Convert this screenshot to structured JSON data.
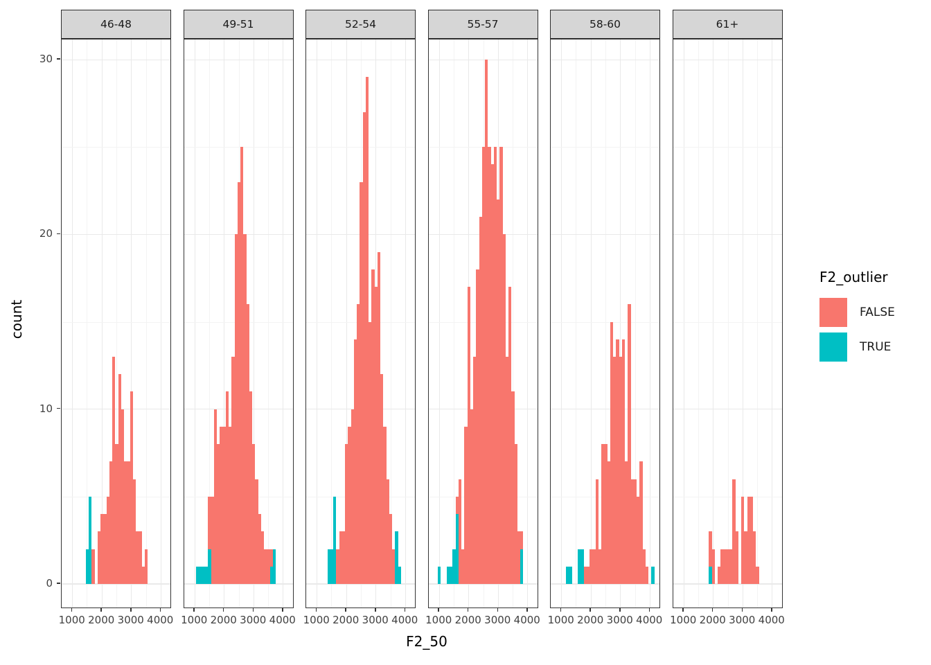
{
  "chart": {
    "y_axis": {
      "title": "count",
      "ticks": [
        0,
        10,
        20,
        30
      ]
    },
    "x_axis": {
      "title": "F2_50",
      "ticks": [
        1000,
        2000,
        3000,
        4000
      ]
    },
    "legend": {
      "title": "F2_outlier",
      "position": "right",
      "items": [
        {
          "label": "FALSE",
          "color": "#F8766D"
        },
        {
          "label": "TRUE",
          "color": "#00BFC4"
        }
      ]
    }
  },
  "chart_data": {
    "type": "bar",
    "subtype": "faceted-stacked-histogram",
    "title": "",
    "xlabel": "F2_50",
    "ylabel": "count",
    "binwidth": 100,
    "xlim": [
      630,
      4370
    ],
    "ylim": [
      0,
      31
    ],
    "grid": "on",
    "facet_labels": [
      "46-48",
      "49-51",
      "52-54",
      "55-57",
      "58-60",
      "61+"
    ],
    "series_colors": {
      "FALSE": "#F8766D",
      "TRUE": "#00BFC4"
    },
    "bars_format": "[bin_center_hz, count_FALSE, count_TRUE]",
    "facets": [
      {
        "label": "46-48",
        "bars": [
          [
            1500,
            0,
            2
          ],
          [
            1600,
            0,
            5
          ],
          [
            1700,
            2,
            0
          ],
          [
            1900,
            3,
            0
          ],
          [
            2000,
            4,
            0
          ],
          [
            2100,
            4,
            0
          ],
          [
            2200,
            5,
            0
          ],
          [
            2300,
            7,
            0
          ],
          [
            2400,
            13,
            0
          ],
          [
            2500,
            8,
            0
          ],
          [
            2600,
            12,
            0
          ],
          [
            2700,
            10,
            0
          ],
          [
            2800,
            7,
            0
          ],
          [
            2900,
            7,
            0
          ],
          [
            3000,
            11,
            0
          ],
          [
            3100,
            6,
            0
          ],
          [
            3200,
            3,
            0
          ],
          [
            3300,
            3,
            0
          ],
          [
            3400,
            1,
            0
          ],
          [
            3500,
            2,
            0
          ]
        ]
      },
      {
        "label": "49-51",
        "bars": [
          [
            1100,
            0,
            1
          ],
          [
            1200,
            0,
            1
          ],
          [
            1300,
            0,
            1
          ],
          [
            1400,
            0,
            1
          ],
          [
            1500,
            3,
            2
          ],
          [
            1600,
            5,
            0
          ],
          [
            1700,
            10,
            0
          ],
          [
            1800,
            8,
            0
          ],
          [
            1900,
            9,
            0
          ],
          [
            2000,
            9,
            0
          ],
          [
            2100,
            11,
            0
          ],
          [
            2200,
            9,
            0
          ],
          [
            2300,
            13,
            0
          ],
          [
            2400,
            20,
            0
          ],
          [
            2500,
            23,
            0
          ],
          [
            2600,
            25,
            0
          ],
          [
            2700,
            20,
            0
          ],
          [
            2800,
            16,
            0
          ],
          [
            2900,
            11,
            0
          ],
          [
            3000,
            8,
            0
          ],
          [
            3100,
            6,
            0
          ],
          [
            3200,
            4,
            0
          ],
          [
            3300,
            3,
            0
          ],
          [
            3400,
            2,
            0
          ],
          [
            3500,
            2,
            0
          ],
          [
            3600,
            1,
            1
          ],
          [
            3700,
            0,
            2
          ]
        ]
      },
      {
        "label": "52-54",
        "bars": [
          [
            1400,
            0,
            2
          ],
          [
            1500,
            0,
            2
          ],
          [
            1600,
            0,
            5
          ],
          [
            1700,
            2,
            0
          ],
          [
            1800,
            3,
            0
          ],
          [
            1900,
            3,
            0
          ],
          [
            2000,
            8,
            0
          ],
          [
            2100,
            9,
            0
          ],
          [
            2200,
            10,
            0
          ],
          [
            2300,
            14,
            0
          ],
          [
            2400,
            16,
            0
          ],
          [
            2500,
            23,
            0
          ],
          [
            2600,
            27,
            0
          ],
          [
            2700,
            29,
            0
          ],
          [
            2800,
            15,
            0
          ],
          [
            2900,
            18,
            0
          ],
          [
            3000,
            17,
            0
          ],
          [
            3100,
            19,
            0
          ],
          [
            3200,
            12,
            0
          ],
          [
            3300,
            9,
            0
          ],
          [
            3400,
            6,
            0
          ],
          [
            3500,
            4,
            0
          ],
          [
            3600,
            2,
            0
          ],
          [
            3700,
            0,
            3
          ],
          [
            3800,
            0,
            1
          ]
        ]
      },
      {
        "label": "55-57",
        "bars": [
          [
            1000,
            0,
            1
          ],
          [
            1300,
            0,
            1
          ],
          [
            1400,
            0,
            1
          ],
          [
            1500,
            0,
            2
          ],
          [
            1600,
            1,
            4
          ],
          [
            1700,
            6,
            0
          ],
          [
            1800,
            2,
            0
          ],
          [
            1900,
            9,
            0
          ],
          [
            2000,
            17,
            0
          ],
          [
            2100,
            10,
            0
          ],
          [
            2200,
            13,
            0
          ],
          [
            2300,
            18,
            0
          ],
          [
            2400,
            21,
            0
          ],
          [
            2500,
            25,
            0
          ],
          [
            2600,
            30,
            0
          ],
          [
            2700,
            25,
            0
          ],
          [
            2800,
            24,
            0
          ],
          [
            2900,
            25,
            0
          ],
          [
            3000,
            22,
            0
          ],
          [
            3100,
            25,
            0
          ],
          [
            3200,
            20,
            0
          ],
          [
            3300,
            13,
            0
          ],
          [
            3400,
            17,
            0
          ],
          [
            3500,
            11,
            0
          ],
          [
            3600,
            8,
            0
          ],
          [
            3700,
            3,
            0
          ],
          [
            3800,
            1,
            2
          ]
        ]
      },
      {
        "label": "58-60",
        "bars": [
          [
            1200,
            0,
            1
          ],
          [
            1300,
            0,
            1
          ],
          [
            1600,
            0,
            2
          ],
          [
            1700,
            0,
            2
          ],
          [
            1800,
            1,
            0
          ],
          [
            1900,
            1,
            0
          ],
          [
            2000,
            2,
            0
          ],
          [
            2100,
            2,
            0
          ],
          [
            2200,
            6,
            0
          ],
          [
            2300,
            2,
            0
          ],
          [
            2400,
            8,
            0
          ],
          [
            2500,
            8,
            0
          ],
          [
            2600,
            7,
            0
          ],
          [
            2700,
            15,
            0
          ],
          [
            2800,
            13,
            0
          ],
          [
            2900,
            14,
            0
          ],
          [
            3000,
            13,
            0
          ],
          [
            3100,
            14,
            0
          ],
          [
            3200,
            7,
            0
          ],
          [
            3300,
            16,
            0
          ],
          [
            3400,
            6,
            0
          ],
          [
            3500,
            6,
            0
          ],
          [
            3600,
            5,
            0
          ],
          [
            3700,
            7,
            0
          ],
          [
            3800,
            2,
            0
          ],
          [
            3900,
            1,
            0
          ],
          [
            4100,
            0,
            1
          ]
        ]
      },
      {
        "label": "61+",
        "bars": [
          [
            1900,
            2,
            1
          ],
          [
            2000,
            2,
            0
          ],
          [
            2200,
            1,
            0
          ],
          [
            2300,
            2,
            0
          ],
          [
            2400,
            2,
            0
          ],
          [
            2500,
            2,
            0
          ],
          [
            2600,
            2,
            0
          ],
          [
            2700,
            6,
            0
          ],
          [
            2800,
            3,
            0
          ],
          [
            3000,
            5,
            0
          ],
          [
            3100,
            3,
            0
          ],
          [
            3200,
            5,
            0
          ],
          [
            3300,
            5,
            0
          ],
          [
            3400,
            3,
            0
          ],
          [
            3500,
            1,
            0
          ]
        ]
      }
    ]
  }
}
